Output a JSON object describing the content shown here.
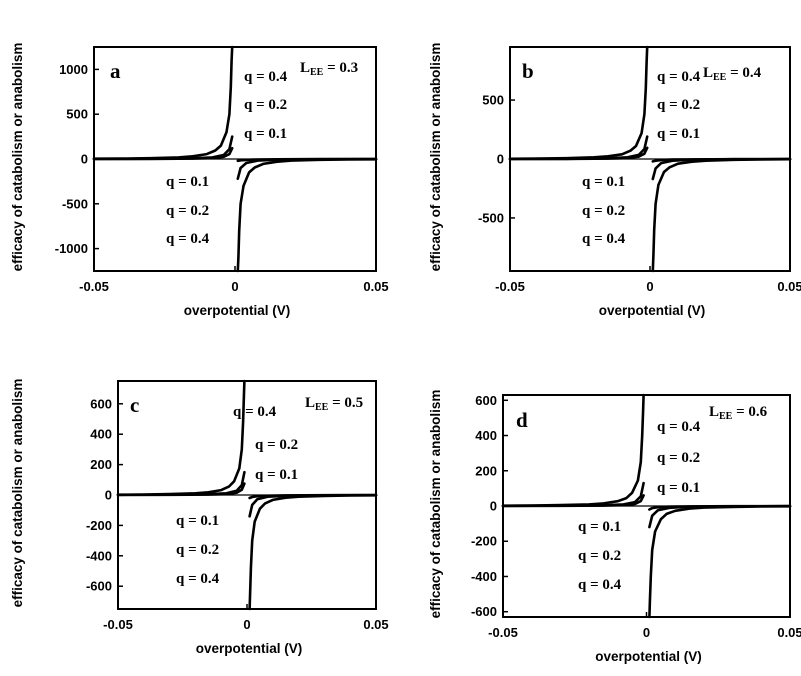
{
  "chart_data": [
    {
      "type": "line",
      "panel": "a",
      "lee_symbol": "L",
      "lee_subscript": "EE",
      "lee_value": "= 0.3",
      "xlabel": "overpotential (V)",
      "ylabel": "efficacy of catabolism or anabolism",
      "xlim": [
        -0.05,
        0.05
      ],
      "ylim": [
        -1250,
        1250
      ],
      "xticks": [
        -0.05,
        0,
        0.05
      ],
      "xtick_labels": [
        "-0.05",
        "0",
        "0.05"
      ],
      "yticks": [
        1000,
        500,
        0,
        -500,
        -1000
      ],
      "ytick_labels": [
        "1000",
        "500",
        "0",
        "-500",
        "-1000"
      ],
      "series": [
        {
          "q": 0.4,
          "side": "catabolism",
          "x": [
            -0.05,
            -0.04,
            -0.03,
            -0.02,
            -0.015,
            -0.01,
            -0.007,
            -0.005,
            -0.003,
            -0.002,
            -0.0015,
            -0.0012,
            -0.001
          ],
          "y": [
            3,
            5,
            9,
            18,
            30,
            55,
            95,
            150,
            300,
            500,
            800,
            1100,
            1250
          ]
        },
        {
          "q": 0.2,
          "side": "catabolism",
          "x": [
            -0.05,
            -0.03,
            -0.015,
            -0.008,
            -0.004,
            -0.002,
            -0.001
          ],
          "y": [
            1,
            3,
            8,
            18,
            45,
            110,
            250
          ]
        },
        {
          "q": 0.1,
          "side": "catabolism",
          "x": [
            -0.05,
            -0.03,
            -0.015,
            -0.008,
            -0.004,
            -0.002,
            -0.001
          ],
          "y": [
            0.5,
            1.5,
            4,
            10,
            25,
            55,
            120
          ]
        },
        {
          "q": 0.1,
          "side": "anabolism",
          "x": [
            0.001,
            0.002,
            0.004,
            0.008,
            0.015,
            0.03,
            0.05
          ],
          "y": [
            -20,
            -15,
            -10,
            -6,
            -3,
            -1.5,
            -0.5
          ]
        },
        {
          "q": 0.2,
          "side": "anabolism",
          "x": [
            0.001,
            0.002,
            0.004,
            0.008,
            0.015,
            0.03,
            0.05
          ],
          "y": [
            -220,
            -100,
            -45,
            -18,
            -8,
            -3,
            -1
          ]
        },
        {
          "q": 0.4,
          "side": "anabolism",
          "x": [
            0.001,
            0.0012,
            0.0015,
            0.002,
            0.003,
            0.005,
            0.007,
            0.01,
            0.015,
            0.02,
            0.03,
            0.04,
            0.05
          ],
          "y": [
            -1250,
            -1100,
            -800,
            -500,
            -300,
            -150,
            -95,
            -55,
            -30,
            -18,
            -9,
            -5,
            -3
          ]
        }
      ],
      "annotations": [
        "q = 0.4",
        "q = 0.2",
        "q = 0.1",
        "q = 0.1",
        "q = 0.2",
        "q = 0.4"
      ]
    },
    {
      "type": "line",
      "panel": "b",
      "lee_symbol": "L",
      "lee_subscript": "EE",
      "lee_value": "= 0.4",
      "xlabel": "overpotential (V)",
      "ylabel": "efficacy of catabolism or anabolism",
      "xlim": [
        -0.05,
        0.05
      ],
      "ylim": [
        -950,
        950
      ],
      "xticks": [
        -0.05,
        0,
        0.05
      ],
      "xtick_labels": [
        "-0.05",
        "0",
        "0.05"
      ],
      "yticks": [
        500,
        0,
        -500
      ],
      "ytick_labels": [
        "500",
        "0",
        "-500"
      ],
      "series": [
        {
          "q": 0.4,
          "side": "catabolism",
          "x": [
            -0.05,
            -0.04,
            -0.03,
            -0.02,
            -0.015,
            -0.01,
            -0.007,
            -0.005,
            -0.003,
            -0.002,
            -0.0015,
            -0.0012,
            -0.001
          ],
          "y": [
            2,
            4,
            7,
            14,
            23,
            40,
            70,
            110,
            220,
            380,
            600,
            820,
            950
          ]
        },
        {
          "q": 0.2,
          "side": "catabolism",
          "x": [
            -0.05,
            -0.03,
            -0.015,
            -0.008,
            -0.004,
            -0.002,
            -0.001
          ],
          "y": [
            1,
            2,
            6,
            14,
            35,
            85,
            190
          ]
        },
        {
          "q": 0.1,
          "side": "catabolism",
          "x": [
            -0.05,
            -0.03,
            -0.015,
            -0.008,
            -0.004,
            -0.002,
            -0.001
          ],
          "y": [
            0.5,
            1,
            3,
            8,
            20,
            45,
            95
          ]
        },
        {
          "q": 0.1,
          "side": "anabolism",
          "x": [
            0.001,
            0.002,
            0.004,
            0.008,
            0.015,
            0.03,
            0.05
          ],
          "y": [
            -20,
            -14,
            -9,
            -5,
            -3,
            -1.5,
            -0.5
          ]
        },
        {
          "q": 0.2,
          "side": "anabolism",
          "x": [
            0.001,
            0.002,
            0.004,
            0.008,
            0.015,
            0.03,
            0.05
          ],
          "y": [
            -170,
            -80,
            -35,
            -14,
            -6,
            -2,
            -1
          ]
        },
        {
          "q": 0.4,
          "side": "anabolism",
          "x": [
            0.001,
            0.0012,
            0.0015,
            0.002,
            0.003,
            0.005,
            0.007,
            0.01,
            0.015,
            0.02,
            0.03,
            0.04,
            0.05
          ],
          "y": [
            -950,
            -820,
            -600,
            -380,
            -220,
            -110,
            -70,
            -40,
            -23,
            -14,
            -7,
            -4,
            -2
          ]
        }
      ],
      "annotations": [
        "q = 0.4",
        "q = 0.2",
        "q = 0.1",
        "q = 0.1",
        "q = 0.2",
        "q = 0.4"
      ]
    },
    {
      "type": "line",
      "panel": "c",
      "lee_symbol": "L",
      "lee_subscript": "EE",
      "lee_value": "= 0.5",
      "xlabel": "overpotential (V)",
      "ylabel": "efficacy of catabolism or anabolism",
      "xlim": [
        -0.05,
        0.05
      ],
      "ylim": [
        -750,
        750
      ],
      "xticks": [
        -0.05,
        0,
        0.05
      ],
      "xtick_labels": [
        "-0.05",
        "0",
        "0.05"
      ],
      "yticks": [
        600,
        400,
        200,
        0,
        -200,
        -400,
        -600
      ],
      "ytick_labels": [
        "600",
        "400",
        "200",
        "0",
        "-200",
        "-400",
        "-600"
      ],
      "series": [
        {
          "q": 0.4,
          "side": "catabolism",
          "x": [
            -0.05,
            -0.04,
            -0.03,
            -0.02,
            -0.015,
            -0.01,
            -0.007,
            -0.005,
            -0.003,
            -0.002,
            -0.0015,
            -0.0012,
            -0.001
          ],
          "y": [
            2,
            3,
            6,
            11,
            18,
            32,
            55,
            90,
            175,
            300,
            480,
            650,
            750
          ]
        },
        {
          "q": 0.2,
          "side": "catabolism",
          "x": [
            -0.05,
            -0.03,
            -0.015,
            -0.008,
            -0.004,
            -0.002,
            -0.001
          ],
          "y": [
            1,
            2,
            5,
            11,
            28,
            65,
            150
          ]
        },
        {
          "q": 0.1,
          "side": "catabolism",
          "x": [
            -0.05,
            -0.03,
            -0.015,
            -0.008,
            -0.004,
            -0.002,
            -0.001
          ],
          "y": [
            0.5,
            1,
            2.5,
            6,
            15,
            35,
            75
          ]
        },
        {
          "q": 0.1,
          "side": "anabolism",
          "x": [
            0.001,
            0.002,
            0.004,
            0.008,
            0.015,
            0.03,
            0.05
          ],
          "y": [
            -20,
            -13,
            -8,
            -5,
            -2.5,
            -1,
            -0.5
          ]
        },
        {
          "q": 0.2,
          "side": "anabolism",
          "x": [
            0.001,
            0.002,
            0.004,
            0.008,
            0.015,
            0.03,
            0.05
          ],
          "y": [
            -140,
            -65,
            -28,
            -11,
            -5,
            -2,
            -1
          ]
        },
        {
          "q": 0.4,
          "side": "anabolism",
          "x": [
            0.001,
            0.0012,
            0.0015,
            0.002,
            0.003,
            0.005,
            0.007,
            0.01,
            0.015,
            0.02,
            0.03,
            0.04,
            0.05
          ],
          "y": [
            -750,
            -650,
            -480,
            -300,
            -175,
            -90,
            -55,
            -32,
            -18,
            -11,
            -6,
            -3,
            -2
          ]
        }
      ],
      "annotations": [
        "q = 0.4",
        "q = 0.2",
        "q = 0.1",
        "q = 0.1",
        "q = 0.2",
        "q = 0.4"
      ]
    },
    {
      "type": "line",
      "panel": "d",
      "lee_symbol": "L",
      "lee_subscript": "EE",
      "lee_value": "= 0.6",
      "xlabel": "overpotential (V)",
      "ylabel": "efficacy of catabolism or anabolism",
      "xlim": [
        -0.05,
        0.05
      ],
      "ylim": [
        -630,
        630
      ],
      "xticks": [
        -0.05,
        0,
        0.05
      ],
      "xtick_labels": [
        "-0.05",
        "0",
        "0.05"
      ],
      "yticks": [
        600,
        400,
        200,
        0,
        -200,
        -400,
        -600
      ],
      "ytick_labels": [
        "600",
        "400",
        "200",
        "0",
        "-200",
        "-400",
        "-600"
      ],
      "series": [
        {
          "q": 0.4,
          "side": "catabolism",
          "x": [
            -0.05,
            -0.04,
            -0.03,
            -0.02,
            -0.015,
            -0.01,
            -0.007,
            -0.005,
            -0.003,
            -0.002,
            -0.0015,
            -0.0012,
            -0.001
          ],
          "y": [
            1.5,
            3,
            5,
            9,
            15,
            27,
            45,
            75,
            145,
            250,
            400,
            540,
            630
          ]
        },
        {
          "q": 0.2,
          "side": "catabolism",
          "x": [
            -0.05,
            -0.03,
            -0.015,
            -0.008,
            -0.004,
            -0.002,
            -0.001
          ],
          "y": [
            1,
            2,
            4,
            9,
            22,
            55,
            130
          ]
        },
        {
          "q": 0.1,
          "side": "catabolism",
          "x": [
            -0.05,
            -0.03,
            -0.015,
            -0.008,
            -0.004,
            -0.002,
            -0.001
          ],
          "y": [
            0.5,
            1,
            2,
            5,
            12,
            28,
            60
          ]
        },
        {
          "q": 0.1,
          "side": "anabolism",
          "x": [
            0.001,
            0.002,
            0.004,
            0.008,
            0.015,
            0.03,
            0.05
          ],
          "y": [
            -20,
            -12,
            -7,
            -4,
            -2,
            -1,
            -0.5
          ]
        },
        {
          "q": 0.2,
          "side": "anabolism",
          "x": [
            0.001,
            0.002,
            0.004,
            0.008,
            0.015,
            0.03,
            0.05
          ],
          "y": [
            -120,
            -55,
            -24,
            -10,
            -4,
            -1.5,
            -1
          ]
        },
        {
          "q": 0.4,
          "side": "anabolism",
          "x": [
            0.001,
            0.0012,
            0.0015,
            0.002,
            0.003,
            0.005,
            0.007,
            0.01,
            0.015,
            0.02,
            0.03,
            0.04,
            0.05
          ],
          "y": [
            -630,
            -540,
            -400,
            -250,
            -145,
            -75,
            -45,
            -27,
            -15,
            -9,
            -5,
            -3,
            -1.5
          ]
        }
      ],
      "annotations": [
        "q = 0.4",
        "q = 0.2",
        "q = 0.1",
        "q = 0.1",
        "q = 0.2",
        "q = 0.4"
      ]
    }
  ]
}
